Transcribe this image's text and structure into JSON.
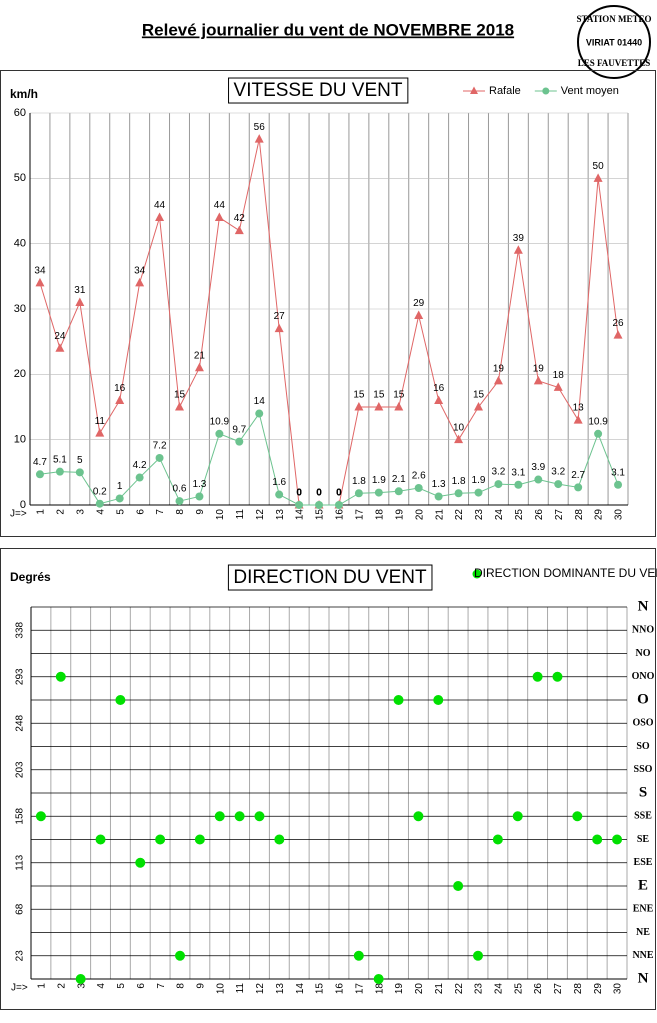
{
  "page_title": "Relevé journalier du vent de NOVEMBRE 2018",
  "stamp": {
    "top": "STATION METEO",
    "middle": "VIRIAT 01440",
    "bottom": "LES FAUVETTES"
  },
  "chart_data": [
    {
      "type": "line",
      "title": "VITESSE DU VENT",
      "y_label": "km/h",
      "x_label": "J=>",
      "categories": [
        "1",
        "2",
        "3",
        "4",
        "5",
        "6",
        "7",
        "8",
        "9",
        "10",
        "11",
        "12",
        "13",
        "14",
        "15",
        "16",
        "17",
        "18",
        "19",
        "20",
        "21",
        "22",
        "23",
        "24",
        "25",
        "26",
        "27",
        "28",
        "29",
        "30"
      ],
      "series": [
        {
          "name": "Rafale",
          "color": "#e06666",
          "marker": "triangle",
          "values": [
            34,
            24,
            31,
            11,
            16,
            34,
            44,
            15,
            21,
            44,
            42,
            56,
            27,
            0,
            0,
            0,
            15,
            15,
            15,
            29,
            16,
            10,
            15,
            19,
            39,
            19,
            18,
            13,
            50,
            26
          ]
        },
        {
          "name": "Vent moyen",
          "color": "#6cc38f",
          "marker": "circle",
          "values": [
            4.7,
            5.1,
            5,
            0.2,
            1,
            4.2,
            7.2,
            0.6,
            1.3,
            10.9,
            9.7,
            14,
            1.6,
            0,
            0,
            0,
            1.8,
            1.9,
            2.1,
            2.6,
            1.3,
            1.8,
            1.9,
            3.2,
            3.1,
            3.9,
            3.2,
            2.7,
            10.9,
            3.1
          ]
        }
      ],
      "ylim": [
        0,
        60
      ],
      "yticks": [
        0,
        10,
        20,
        30,
        40,
        50,
        60
      ],
      "grid": true,
      "legend": "top-right"
    },
    {
      "type": "scatter",
      "title": "DIRECTION DU VENT",
      "y_label": "Degrés",
      "x_label": "J=>",
      "categories": [
        "1",
        "2",
        "3",
        "4",
        "5",
        "6",
        "7",
        "8",
        "9",
        "10",
        "11",
        "12",
        "13",
        "14",
        "15",
        "16",
        "17",
        "18",
        "19",
        "20",
        "21",
        "22",
        "23",
        "24",
        "25",
        "26",
        "27",
        "28",
        "29",
        "30"
      ],
      "series": [
        {
          "name": "DIRECTION DOMINANTE DU VENT",
          "color": "#00e000",
          "marker": "circle",
          "values": [
            157.5,
            292.5,
            0,
            135,
            270,
            112.5,
            135,
            22.5,
            135,
            157.5,
            157.5,
            157.5,
            135,
            null,
            null,
            null,
            22.5,
            0,
            270,
            157.5,
            270,
            90,
            22.5,
            135,
            157.5,
            292.5,
            292.5,
            157.5,
            135,
            135
          ]
        }
      ],
      "ylim": [
        0,
        360
      ],
      "yticks": [
        0,
        {
          "value": 22.5,
          "label": "23"
        },
        45,
        {
          "value": 67.5,
          "label": "68"
        },
        90,
        {
          "value": 112.5,
          "label": "113"
        },
        135,
        {
          "value": 157.5,
          "label": "158"
        },
        180,
        {
          "value": 202.5,
          "label": "203"
        },
        225,
        {
          "value": 247.5,
          "label": "248"
        },
        270,
        {
          "value": 292.5,
          "label": "293"
        },
        315,
        {
          "value": 337.5,
          "label": "338"
        },
        360
      ],
      "y2lim": [
        0,
        360
      ],
      "y2ticks": [
        {
          "value": 0,
          "label": "N"
        },
        {
          "value": 22.5,
          "label": "NNE"
        },
        {
          "value": 45,
          "label": "NE"
        },
        {
          "value": 67.5,
          "label": "ENE"
        },
        {
          "value": 90,
          "label": "E"
        },
        {
          "value": 112.5,
          "label": "ESE"
        },
        {
          "value": 135,
          "label": "SE"
        },
        {
          "value": 157.5,
          "label": "SSE"
        },
        {
          "value": 180,
          "label": "S"
        },
        {
          "value": 202.5,
          "label": "SSO"
        },
        {
          "value": 225,
          "label": "SO"
        },
        {
          "value": 247.5,
          "label": "OSO"
        },
        {
          "value": 270,
          "label": "O"
        },
        {
          "value": 292.5,
          "label": "ONO"
        },
        {
          "value": 315,
          "label": "NO"
        },
        {
          "value": 337.5,
          "label": "NNO"
        },
        {
          "value": 360,
          "label": "N"
        }
      ],
      "grid": true,
      "legend": "top-right"
    }
  ]
}
